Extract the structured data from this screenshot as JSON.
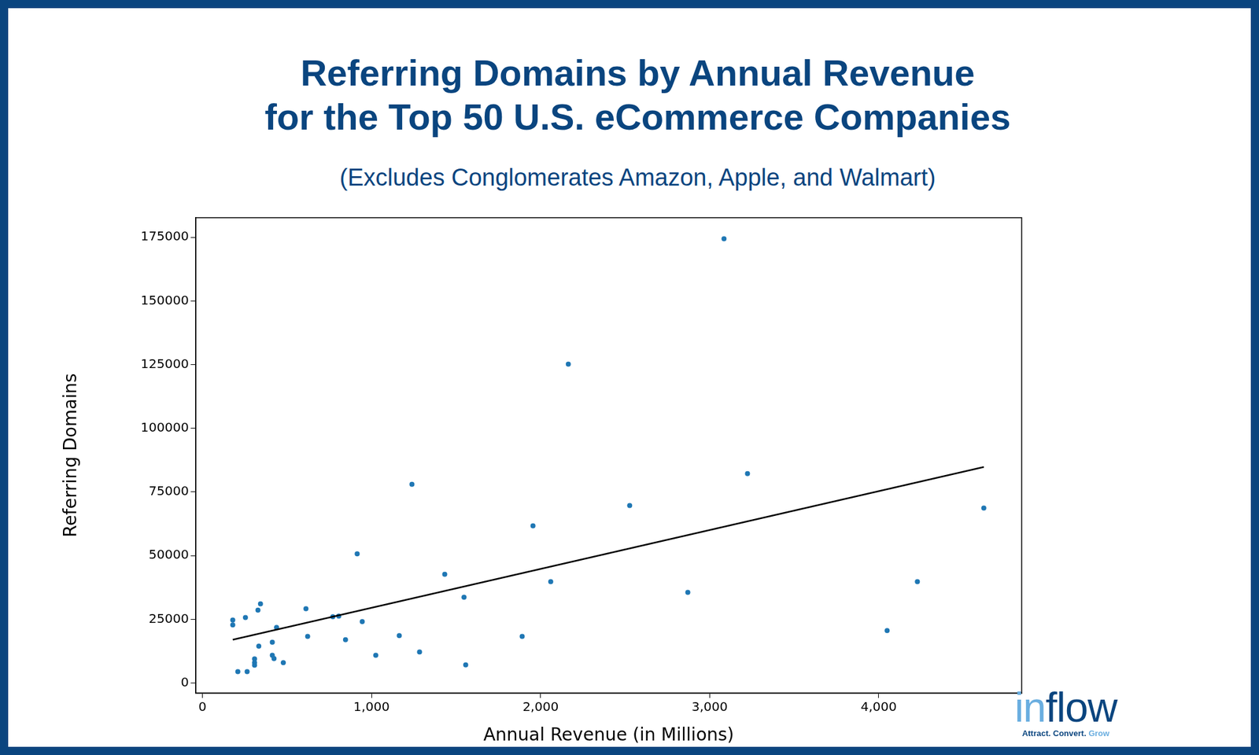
{
  "chart_data": {
    "type": "scatter",
    "title": [
      "Referring Domains by Annual Revenue",
      "for the Top 50 U.S. eCommerce Companies"
    ],
    "subtitle": "(Excludes Conglomerates Amazon, Apple, and Walmart)",
    "x_label": "Annual Revenue (in Millions)",
    "y_label": "Referring Domains",
    "xlim": [
      -40,
      4846
    ],
    "ylim": [
      -3900,
      182700
    ],
    "xticks": [
      0,
      1000,
      2000,
      3000,
      4000
    ],
    "yticks": [
      0,
      25000,
      50000,
      75000,
      100000,
      125000,
      150000,
      175000
    ],
    "grid": false,
    "series": [
      {
        "type": "scatter",
        "color": "#1f77b4",
        "marker": "circle",
        "x": [
          179,
          179,
          209,
          254,
          264,
          308,
          308,
          308,
          328,
          343,
          333,
          413,
          413,
          423,
          438,
          478,
          612,
          622,
          771,
          806,
          846,
          915,
          945,
          1025,
          1164,
          1239,
          1284,
          1433,
          1547,
          1557,
          1891,
          1955,
          2060,
          2164,
          2527,
          2871,
          3085,
          3224,
          4050,
          4229,
          4622
        ],
        "values": [
          24700,
          22800,
          4500,
          25700,
          4500,
          9500,
          8000,
          7000,
          28600,
          31100,
          14500,
          16000,
          10900,
          9600,
          21800,
          8000,
          29200,
          18300,
          26000,
          26300,
          17000,
          50700,
          24100,
          10900,
          18600,
          78000,
          12200,
          42700,
          33700,
          7100,
          18300,
          61700,
          39800,
          125200,
          69700,
          35600,
          174400,
          82200,
          20600,
          39800,
          68700
        ]
      },
      {
        "type": "line",
        "color": "#000000",
        "line_style": "solid",
        "x": [
          179,
          4622
        ],
        "values": [
          17000,
          84800
        ]
      }
    ]
  },
  "logo": {
    "parts": [
      "in",
      "flow"
    ],
    "tagline": [
      "Attract. Convert.",
      "Grow"
    ]
  }
}
